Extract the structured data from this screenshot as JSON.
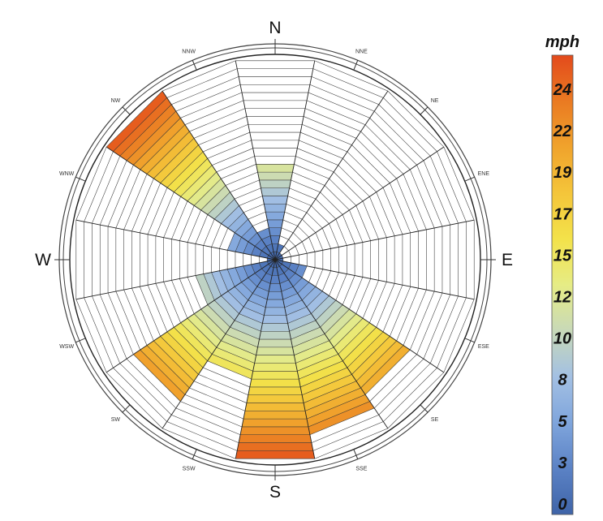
{
  "chart_data": {
    "type": "wind-rose",
    "directions": [
      "N",
      "NNE",
      "NE",
      "ENE",
      "E",
      "ESE",
      "SE",
      "SSE",
      "S",
      "SSW",
      "SW",
      "WSW",
      "W",
      "WNW",
      "NW",
      "NNW"
    ],
    "direction_labels": {
      "cardinal": {
        "N": "N",
        "E": "E",
        "S": "S",
        "W": "W"
      },
      "intercardinal": {
        "NNE": "NNE",
        "NE": "NE",
        "ENE": "ENE",
        "ESE": "ESE",
        "SE": "SE",
        "SSE": "SSE",
        "SSW": "SSW",
        "SW": "SW",
        "WSW": "WSW",
        "WNW": "WNW",
        "NW": "NW",
        "NNW": "NNW"
      }
    },
    "wedges": [
      {
        "direction": "N",
        "value": 12.5
      },
      {
        "direction": "NNE",
        "value": 2.5
      },
      {
        "direction": "NE",
        "value": 1.5
      },
      {
        "direction": "ENE",
        "value": 1.0
      },
      {
        "direction": "E",
        "value": 1.5
      },
      {
        "direction": "ESE",
        "value": 4.5
      },
      {
        "direction": "SE",
        "value": 20.5
      },
      {
        "direction": "SSE",
        "value": 22.0
      },
      {
        "direction": "S",
        "value": 25.5
      },
      {
        "direction": "SSW",
        "value": 15.0
      },
      {
        "direction": "SW",
        "value": 21.0
      },
      {
        "direction": "WSW",
        "value": 10.5
      },
      {
        "direction": "W",
        "value": 1.5
      },
      {
        "direction": "WNW",
        "value": 6.0
      },
      {
        "direction": "NW",
        "value": 25.5
      },
      {
        "direction": "NNW",
        "value": 4.0
      }
    ],
    "rings": 25,
    "colorbar": {
      "title": "mph",
      "ticks": [
        "24",
        "22",
        "19",
        "17",
        "15",
        "12",
        "10",
        "8",
        "5",
        "3",
        "0"
      ],
      "range": [
        0,
        26
      ],
      "colors": [
        "#3f64a8",
        "#5b82c5",
        "#7fa5dc",
        "#a3c0e3",
        "#c8d9b8",
        "#e6ec85",
        "#f3e24a",
        "#f4c53a",
        "#f0a32c",
        "#ea7a22",
        "#e34a1c"
      ]
    }
  }
}
